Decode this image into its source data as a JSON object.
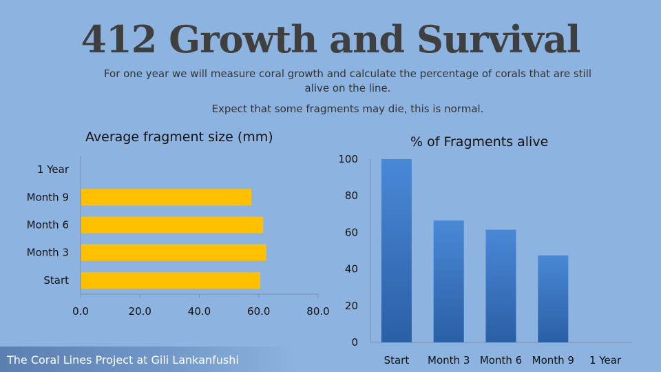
{
  "slide": {
    "title": "412 Growth and Survival",
    "subtitle_line1": "For one year we will measure coral growth and calculate the percentage of corals that are still alive on the line.",
    "subtitle_line2": "Expect that some fragments may die, this is normal.",
    "footer": "The Coral Lines Project at Gili Lankanfushi"
  },
  "colors": {
    "background": "#8db3e0",
    "bar_orange": "#ffc000",
    "bar_blue_top": "#4a88d6",
    "bar_blue_bottom": "#2a5fa6"
  },
  "chart_data": [
    {
      "type": "bar",
      "orientation": "horizontal",
      "title": "Average fragment size (mm)",
      "categories": [
        "Start",
        "Month 3",
        "Month 6",
        "Month 9",
        "1 Year"
      ],
      "values": [
        60.5,
        62.5,
        61.5,
        57.5,
        null
      ],
      "xlim": [
        0,
        80
      ],
      "ticks": [
        "0.0",
        "20.0",
        "40.0",
        "60.0",
        "80.0"
      ],
      "grid": false,
      "legend": "none"
    },
    {
      "type": "bar",
      "orientation": "vertical",
      "title": "% of Fragments alive",
      "categories": [
        "Start",
        "Month 3",
        "Month 6",
        "Month 9",
        "1 Year"
      ],
      "values": [
        100,
        66.5,
        61.5,
        47.5,
        null
      ],
      "ylim": [
        0,
        100
      ],
      "ticks": [
        "0",
        "20",
        "40",
        "60",
        "80",
        "100"
      ],
      "grid": false,
      "legend": "none"
    }
  ]
}
